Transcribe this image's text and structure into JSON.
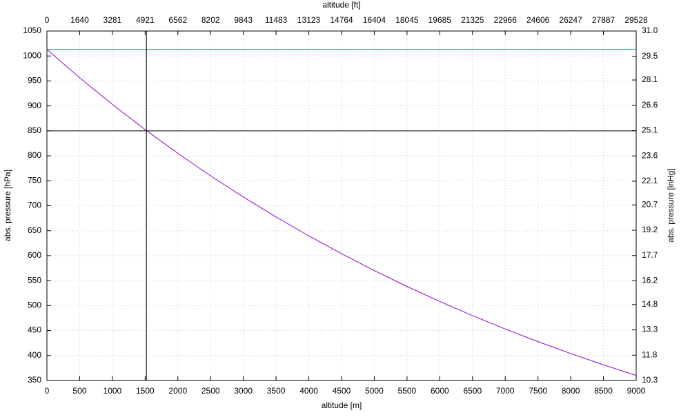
{
  "chart_data": {
    "type": "line",
    "xlabel": "altitude [m]",
    "x2label": "altitude [ft]",
    "ylabel": "abs. pressure [hPa]",
    "y2label": "abs. pressure [inHg]",
    "xlim": [
      0,
      9000
    ],
    "xticks": [
      0,
      500,
      1000,
      1500,
      2000,
      2500,
      3000,
      3500,
      4000,
      4500,
      5000,
      5500,
      6000,
      6500,
      7000,
      7500,
      8000,
      8500,
      9000
    ],
    "x2lim": [
      0,
      29528
    ],
    "x2ticks": [
      0,
      1640,
      3281,
      4921,
      6562,
      8202,
      9843,
      11483,
      13123,
      14764,
      16404,
      18045,
      19685,
      21325,
      22966,
      24606,
      26247,
      27887,
      29528
    ],
    "ylim": [
      350,
      1050
    ],
    "yticks": [
      350,
      400,
      450,
      500,
      550,
      600,
      650,
      700,
      750,
      800,
      850,
      900,
      950,
      1000,
      1050
    ],
    "y2lim": [
      10.3,
      31.0
    ],
    "y2ticks": [
      10.3,
      11.8,
      13.3,
      14.8,
      16.2,
      17.7,
      19.2,
      20.7,
      22.1,
      23.6,
      25.1,
      26.6,
      28.1,
      29.5,
      {
        "value": 31.0,
        "label": "31.0"
      }
    ],
    "grid": true,
    "series": [
      {
        "color": "#9400d3",
        "x": [
          0,
          500,
          1000,
          1500,
          2000,
          2500,
          3000,
          3500,
          4000,
          4500,
          5000,
          5500,
          6000,
          6500,
          7000,
          7500,
          8000,
          8500,
          9000
        ],
        "values": [
          1013,
          956.5,
          903.0,
          852.5,
          804.9,
          759.9,
          717.5,
          677.5,
          639.6,
          603.9,
          570.2,
          538.3,
          508.3,
          479.9,
          453.1,
          427.8,
          403.9,
          381.4,
          360.0
        ]
      },
      {
        "color": "#009e73",
        "x": [
          0,
          9000
        ],
        "values": [
          1013,
          1013
        ]
      }
    ],
    "hline": 850,
    "vline": 1520,
    "line_color": "#000000"
  }
}
